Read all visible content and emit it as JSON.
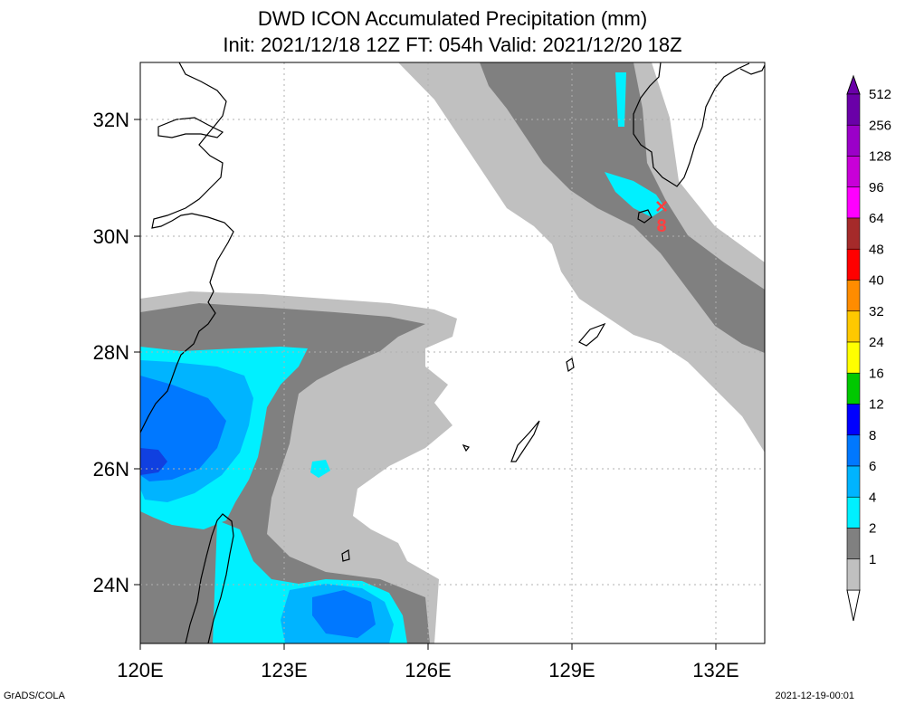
{
  "title": {
    "line1": "DWD ICON Accumulated Precipitation (mm)",
    "line2": "Init: 2021/12/18 12Z  FT: 054h  Valid: 2021/12/20 18Z"
  },
  "axes": {
    "x_ticks": [
      "120E",
      "123E",
      "126E",
      "129E",
      "132E"
    ],
    "y_ticks": [
      "32N",
      "30N",
      "28N",
      "26N",
      "24N"
    ],
    "lon_range": [
      120,
      133
    ],
    "lat_range": [
      23,
      33
    ]
  },
  "marker": {
    "label": "8",
    "symbol": "×",
    "lon": 130.9,
    "lat": 30.5
  },
  "colorbar": {
    "levels": [
      {
        "label": "512",
        "color": "#6a00a8"
      },
      {
        "label": "256",
        "color": "#9b00c8"
      },
      {
        "label": "128",
        "color": "#c800d8"
      },
      {
        "label": "96",
        "color": "#ff00ff"
      },
      {
        "label": "64",
        "color": "#a52a2a"
      },
      {
        "label": "48",
        "color": "#ff0000"
      },
      {
        "label": "40",
        "color": "#ff8c00"
      },
      {
        "label": "32",
        "color": "#ffc800"
      },
      {
        "label": "24",
        "color": "#ffff00"
      },
      {
        "label": "16",
        "color": "#00c800"
      },
      {
        "label": "12",
        "color": "#0000ff"
      },
      {
        "label": "8",
        "color": "#0078ff"
      },
      {
        "label": "6",
        "color": "#00b4ff"
      },
      {
        "label": "4",
        "color": "#00f0ff"
      },
      {
        "label": "2",
        "color": "#808080"
      },
      {
        "label": "1",
        "color": "#c0c0c0"
      }
    ]
  },
  "footer": {
    "left": "GrADS/COLA",
    "right": "2021-12-19-00:01"
  }
}
